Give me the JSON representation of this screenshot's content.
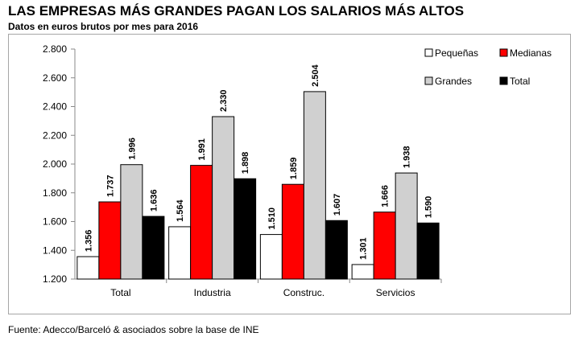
{
  "title": "LAS EMPRESAS MÁS GRANDES PAGAN LOS SALARIOS MÁS ALTOS",
  "subtitle": "Datos en euros brutos por mes para 2016",
  "source": "Fuente: Adecco/Barceló & asociados sobre la base de INE",
  "chart_data": {
    "type": "bar",
    "title": "",
    "xlabel": "",
    "ylabel": "",
    "categories": [
      "Total",
      "Industria",
      "Construc.",
      "Servicios"
    ],
    "series": [
      {
        "name": "Pequeñas",
        "values": [
          1356,
          1564,
          1510,
          1301
        ],
        "labels": [
          "1.356",
          "1.564",
          "1.510",
          "1.301"
        ],
        "color": "#ffffff"
      },
      {
        "name": "Medianas",
        "values": [
          1737,
          1991,
          1859,
          1666
        ],
        "labels": [
          "1.737",
          "1.991",
          "1.859",
          "1.666"
        ],
        "color": "#ff0000"
      },
      {
        "name": "Grandes",
        "values": [
          1996,
          2330,
          2504,
          1938
        ],
        "labels": [
          "1.996",
          "2.330",
          "2.504",
          "1.938"
        ],
        "color": "#d0d0d0"
      },
      {
        "name": "Total",
        "values": [
          1636,
          1898,
          1607,
          1590
        ],
        "labels": [
          "1.636",
          "1.898",
          "1.607",
          "1.590"
        ],
        "color": "#000000"
      }
    ],
    "ylim": [
      1200,
      2800
    ],
    "yticks": [
      1200,
      1400,
      1600,
      1800,
      2000,
      2200,
      2400,
      2600,
      2800
    ],
    "ytick_labels": [
      "1.200",
      "1.400",
      "1.600",
      "1.800",
      "2.000",
      "2.200",
      "2.400",
      "2.600",
      "2.800"
    ],
    "grid": false,
    "legend": "top-right"
  }
}
